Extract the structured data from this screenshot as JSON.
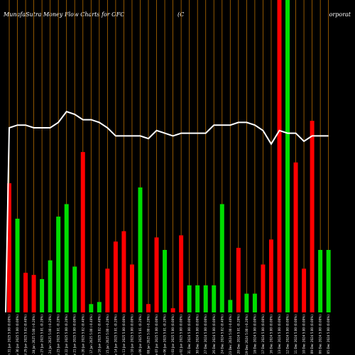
{
  "header": {
    "title_left": "MunafaSutra  Money Flow  Charts for OFC",
    "title_mid": "(C",
    "title_right": "orporat"
  },
  "chart_data": {
    "type": "bar",
    "title": "MunafaSutra Money Flow Charts for OFC (Corporat",
    "colors": {
      "up": "#00dd00",
      "down": "#ff0000",
      "line": "#ffffff",
      "grid": "#b36b00",
      "background": "#000000"
    },
    "categories": [
      "Fri 31 Jan 2025",
      "Thu 30 Jan 2025",
      "Wed 29 Jan 2025",
      "Tue 28 Jan 2025",
      "Mon 27 Jan 2025",
      "Fri 24 Jan 2025",
      "Thu 23 Jan 2025",
      "Wed 22 Jan 2025",
      "Tue 21 Jan 2025",
      "Mon 20 Jan 2025",
      "Fri 17 Jan 2025",
      "Thu 16 Jan 2025",
      "Wed 15 Jan 2025",
      "Tue 14 Jan 2025",
      "Mon 13 Jan 2025",
      "Fri 10 Jan 2025",
      "Thu 09 Jan 2025",
      "Wed 08 Jan 2025",
      "Tue 07 Jan 2025",
      "Mon 06 Jan 2025",
      "Fri 03 Jan 2025",
      "Thu 02 Jan 2025",
      "Tue 31 Dec 2024",
      "Mon 30 Dec 2024",
      "Fri 27 Dec 2024",
      "Thu 26 Dec 2024",
      "Tue 24 Dec 2024",
      "Mon 23 Dec 2024",
      "Fri 20 Dec 2024",
      "Thu 19 Dec 2024",
      "Wed 18 Dec 2024",
      "Tue 17 Dec 2024",
      "Mon 16 Dec 2024",
      "Fri 13 Dec 2024",
      "Thu 12 Dec 2024",
      "Wed 11 Dec 2024",
      "Tue 10 Dec 2024",
      "Mon 09 Dec 2024",
      "Fri 06 Dec 2024",
      "Thu 05 Dec 2024"
    ],
    "tick_labels": [
      "5.00 (0.00%)",
      "5.00 (0.00%)",
      "5.02 (0.40%)",
      "5.00 (-0.20%)",
      "5.01 (0.20%)",
      "5.00 (-0.20%)",
      "5.01 (0.20%)",
      "5.00 (0.20%)",
      "5.00 (0.00%)",
      "5.02 (0.40%)",
      "5.00 (-0.40%)",
      "5.02 (0.40%)",
      "5.00 (-0.20%)",
      "5.01 (0.20%)",
      "5.00 (0.00%)",
      "5.00 (0.00%)",
      "5.01 (0.20%)",
      "5.00 (-0.20%)",
      "5.00 (0.00%)",
      "5.01 (0.20%)",
      "5.00 (0.00%)",
      "5.00 (0.00%)",
      "5.00 (0.00%)",
      "5.00 (0.00%)",
      "5.00 (0.00%)",
      "5.00 (0.00%)",
      "5.02 (0.40%)",
      "5.00 (-0.40%)",
      "5.01 (0.20%)",
      "5.00 (-0.20%)",
      "5.00 (0.00%)",
      "5.00 (0.00%)",
      "5.00 (0.00%)",
      "5.00 (0.00%)",
      "5.00 (0.00%)",
      "5.00 (0.00%)",
      "5.00 (0.00%)",
      "5.00 (0.00%)",
      "5.00 (0.00%)",
      "5.00 (0.00%)"
    ],
    "values": [
      62,
      45,
      19,
      18,
      16,
      25,
      46,
      52,
      22,
      77,
      4,
      5,
      21,
      34,
      39,
      23,
      60,
      4,
      36,
      30,
      2,
      37,
      13,
      13,
      13,
      13,
      52,
      6,
      31,
      9,
      9,
      23,
      35,
      150,
      150,
      72,
      21,
      92,
      30,
      30
    ],
    "directions": [
      "down",
      "up",
      "down",
      "down",
      "up",
      "up",
      "up",
      "up",
      "up",
      "down",
      "up",
      "up",
      "down",
      "down",
      "down",
      "down",
      "up",
      "down",
      "down",
      "up",
      "down",
      "down",
      "up",
      "up",
      "up",
      "up",
      "up",
      "up",
      "down",
      "up",
      "up",
      "down",
      "down",
      "down",
      "up",
      "down",
      "down",
      "down",
      "up",
      "up"
    ],
    "line": [
      90,
      91,
      91,
      90,
      90,
      90,
      92,
      96,
      95,
      93,
      93,
      92,
      90,
      87,
      87,
      87,
      87,
      86,
      89,
      88,
      87,
      88,
      88,
      88,
      88,
      91,
      91,
      91,
      92,
      92,
      91,
      89,
      84,
      89,
      88,
      88,
      85,
      87,
      87,
      87
    ],
    "ylim": [
      0,
      150
    ]
  }
}
